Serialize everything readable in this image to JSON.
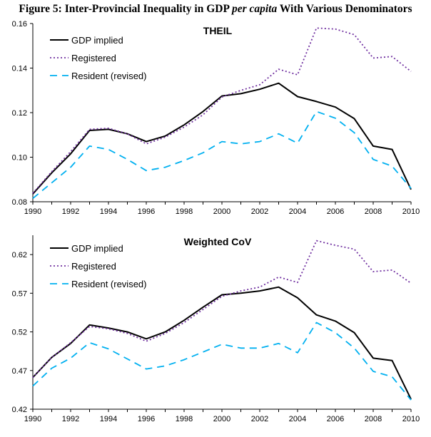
{
  "figure": {
    "title_prefix": "Figure 5: Inter-Provincial Inequality in GDP ",
    "title_italic": "per capita",
    "title_suffix": " With Various Denominators"
  },
  "colors": {
    "gdp_implied": "#000000",
    "registered": "#7030A0",
    "resident": "#00B0F0",
    "axis": "#000000"
  },
  "chart_data": [
    {
      "type": "line",
      "title": "THEIL",
      "x": [
        1990,
        1991,
        1992,
        1993,
        1994,
        1995,
        1996,
        1997,
        1998,
        1999,
        2000,
        2001,
        2002,
        2003,
        2004,
        2005,
        2006,
        2007,
        2008,
        2009,
        2010
      ],
      "x_ticks": [
        "1990",
        "1992",
        "1994",
        "1996",
        "1998",
        "2000",
        "2002",
        "2004",
        "2006",
        "2008",
        "2010"
      ],
      "y_ticks": [
        "0.08",
        "0.10",
        "0.12",
        "0.14",
        "0.16"
      ],
      "ylim": [
        0.08,
        0.16
      ],
      "grid": false,
      "legend_position": "top-left",
      "series": [
        {
          "name": "GDP implied",
          "key": "gdp_implied",
          "style": "solid",
          "values": [
            0.0835,
            0.093,
            0.1015,
            0.112,
            0.1125,
            0.1105,
            0.107,
            0.1095,
            0.1145,
            0.1205,
            0.1275,
            0.1285,
            0.1305,
            0.1332,
            0.1272,
            0.125,
            0.1225,
            0.1173,
            0.105,
            0.1035,
            0.0855
          ]
        },
        {
          "name": "Registered",
          "key": "registered",
          "style": "dotted",
          "values": [
            0.0838,
            0.0935,
            0.1025,
            0.1125,
            0.113,
            0.1105,
            0.106,
            0.109,
            0.1135,
            0.119,
            0.127,
            0.13,
            0.1325,
            0.1395,
            0.137,
            0.158,
            0.1575,
            0.155,
            0.1445,
            0.1452,
            0.1385
          ]
        },
        {
          "name": "Resident (revised)",
          "key": "resident",
          "style": "dashed",
          "values": [
            0.0815,
            0.0885,
            0.0955,
            0.105,
            0.1035,
            0.099,
            0.094,
            0.0955,
            0.0985,
            0.102,
            0.107,
            0.106,
            0.107,
            0.1105,
            0.1063,
            0.1205,
            0.1175,
            0.111,
            0.099,
            0.096,
            0.086
          ]
        }
      ]
    },
    {
      "type": "line",
      "title": "Weighted CoV",
      "x": [
        1990,
        1991,
        1992,
        1993,
        1994,
        1995,
        1996,
        1997,
        1998,
        1999,
        2000,
        2001,
        2002,
        2003,
        2004,
        2005,
        2006,
        2007,
        2008,
        2009,
        2010
      ],
      "x_ticks": [
        "1990",
        "1992",
        "1994",
        "1996",
        "1998",
        "2000",
        "2002",
        "2004",
        "2006",
        "2008",
        "2010"
      ],
      "y_ticks": [
        "0.42",
        "0.47",
        "0.52",
        "0.57",
        "0.62"
      ],
      "ylim": [
        0.42,
        0.645
      ],
      "grid": false,
      "legend_position": "top-left",
      "series": [
        {
          "name": "GDP implied",
          "key": "gdp_implied",
          "style": "solid",
          "values": [
            0.461,
            0.487,
            0.505,
            0.529,
            0.525,
            0.52,
            0.511,
            0.52,
            0.535,
            0.552,
            0.568,
            0.57,
            0.573,
            0.578,
            0.564,
            0.542,
            0.534,
            0.519,
            0.486,
            0.483,
            0.433
          ]
        },
        {
          "name": "Registered",
          "key": "registered",
          "style": "dotted",
          "values": [
            0.461,
            0.487,
            0.506,
            0.527,
            0.524,
            0.518,
            0.508,
            0.518,
            0.532,
            0.549,
            0.566,
            0.573,
            0.578,
            0.591,
            0.584,
            0.638,
            0.632,
            0.627,
            0.598,
            0.6,
            0.583
          ]
        },
        {
          "name": "Resident (revised)",
          "key": "resident",
          "style": "dashed",
          "values": [
            0.45,
            0.473,
            0.486,
            0.506,
            0.498,
            0.485,
            0.472,
            0.476,
            0.484,
            0.494,
            0.504,
            0.499,
            0.499,
            0.505,
            0.493,
            0.532,
            0.519,
            0.499,
            0.469,
            0.462,
            0.432
          ]
        }
      ]
    }
  ]
}
